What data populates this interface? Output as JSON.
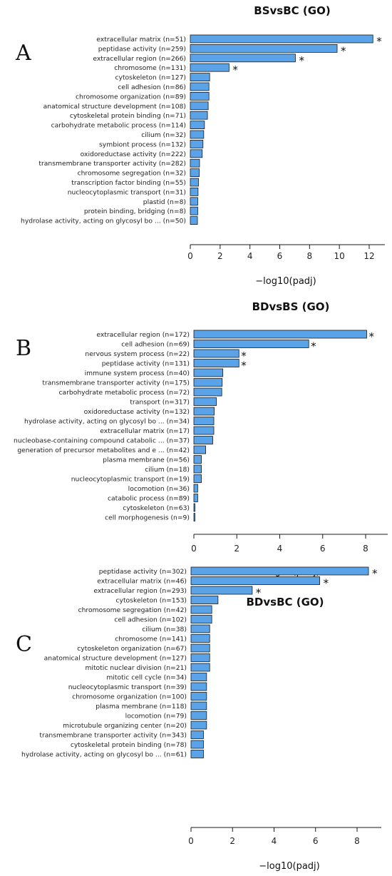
{
  "chart_data": [
    {
      "type": "bar",
      "orientation": "horizontal",
      "panel_letter": "A",
      "title": "BSvsBC (GO)",
      "xlabel": "−log10(padj)",
      "xlim": [
        0,
        13
      ],
      "xticks": [
        0,
        2,
        4,
        6,
        8,
        10,
        12
      ],
      "bar_color": "#5aa3e8",
      "categories": [
        "extracellular matrix (n=51)",
        "peptidase activity (n=259)",
        "extracellular region (n=266)",
        "chromosome (n=131)",
        "cytoskeleton (n=127)",
        "cell adhesion (n=86)",
        "chromosome organization (n=89)",
        "anatomical structure development (n=108)",
        "cytoskeletal protein binding (n=71)",
        "carbohydrate metabolic process (n=114)",
        "cilium (n=32)",
        "symbiont process (n=132)",
        "oxidoreductase activity (n=222)",
        "transmembrane transporter activity (n=282)",
        "chromosome segregation (n=32)",
        "transcription factor binding (n=55)",
        "nucleocytoplasmic transport (n=31)",
        "plastid (n=8)",
        "protein binding, bridging (n=8)",
        "hydrolase activity, acting on glycosyl bo ... (n=50)"
      ],
      "values": [
        12.25,
        9.85,
        7.05,
        2.6,
        1.3,
        1.25,
        1.25,
        1.2,
        1.15,
        0.95,
        0.9,
        0.85,
        0.8,
        0.62,
        0.6,
        0.55,
        0.52,
        0.5,
        0.5,
        0.48
      ],
      "significance": [
        "*",
        "*",
        "*",
        "*",
        "",
        "",
        "",
        "",
        "",
        "",
        "",
        "",
        "",
        "",
        "",
        "",
        "",
        "",
        "",
        ""
      ]
    },
    {
      "type": "bar",
      "orientation": "horizontal",
      "panel_letter": "B",
      "title": "BDvsBS (GO)",
      "xlabel": "−log10(padj)",
      "xlim": [
        0,
        9
      ],
      "xticks": [
        0,
        2,
        4,
        6,
        8
      ],
      "bar_color": "#5aa3e8",
      "categories": [
        "extracellular region (n=172)",
        "cell adhesion (n=69)",
        "nervous system process (n=22)",
        "peptidase activity (n=131)",
        "immune system process (n=40)",
        "transmembrane transporter activity (n=175)",
        "carbohydrate metabolic process (n=72)",
        "transport (n=317)",
        "oxidoreductase activity (n=132)",
        "hydrolase activity, acting on glycosyl bo ... (n=34)",
        "extracellular matrix (n=17)",
        "nucleobase-containing compound catabolic  ... (n=37)",
        "generation of precursor metabolites and e ... (n=42)",
        "plasma membrane (n=56)",
        "cilium (n=18)",
        "nucleocytoplasmic transport (n=19)",
        "locomotion (n=36)",
        "catabolic process (n=89)",
        "cytoskeleton (n=63)",
        "cell morphogenesis (n=9)"
      ],
      "values": [
        8.05,
        5.35,
        2.1,
        2.1,
        1.35,
        1.32,
        1.3,
        1.05,
        0.95,
        0.93,
        0.93,
        0.88,
        0.55,
        0.35,
        0.35,
        0.35,
        0.18,
        0.18,
        0.05,
        0.05
      ],
      "significance": [
        "*",
        "*",
        "*",
        "*",
        "",
        "",
        "",
        "",
        "",
        "",
        "",
        "",
        "",
        "",
        "",
        "",
        "",
        "",
        "",
        ""
      ]
    },
    {
      "type": "bar",
      "orientation": "horizontal",
      "panel_letter": "C",
      "title": "BDvsBC (GO)",
      "xlabel": "−log10(padj)",
      "xlim": [
        0,
        9
      ],
      "xticks": [
        0,
        2,
        4,
        6,
        8
      ],
      "bar_color": "#5aa3e8",
      "categories": [
        "peptidase activity (n=302)",
        "extracellular matrix (n=46)",
        "extracellular region (n=293)",
        "cytoskeleton (n=153)",
        "chromosome segregation (n=42)",
        "cell adhesion (n=102)",
        "cilium (n=38)",
        "chromosome (n=141)",
        "cytoskeleton organization (n=67)",
        "anatomical structure development (n=127)",
        "mitotic nuclear division (n=21)",
        "mitotic cell cycle (n=34)",
        "nucleocytoplasmic transport (n=39)",
        "chromosome organization (n=100)",
        "plasma membrane (n=118)",
        "locomotion (n=79)",
        "microtubule organizing center (n=20)",
        "transmembrane transporter activity (n=343)",
        "cytoskeletal protein binding (n=78)",
        "hydrolase activity, acting on glycosyl bo ... (n=61)"
      ],
      "values": [
        8.55,
        6.2,
        2.95,
        1.3,
        1.0,
        1.0,
        0.9,
        0.9,
        0.9,
        0.9,
        0.9,
        0.75,
        0.75,
        0.75,
        0.75,
        0.75,
        0.75,
        0.6,
        0.6,
        0.6
      ],
      "significance": [
        "*",
        "*",
        "*",
        "",
        "",
        "",
        "",
        "",
        "",
        "",
        "",
        "",
        "",
        "",
        "",
        "",
        "",
        "",
        "",
        ""
      ]
    }
  ]
}
